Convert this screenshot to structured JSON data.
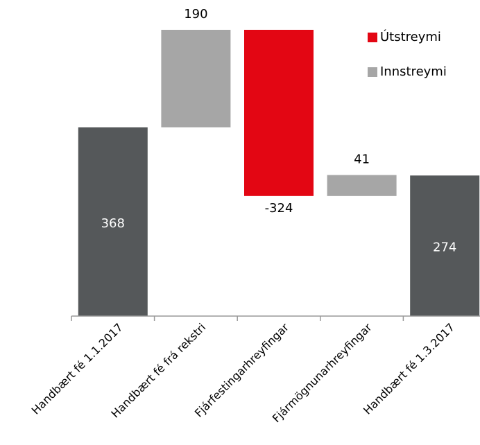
{
  "chart_data": {
    "type": "waterfall",
    "categories": [
      "Handbært fé 1.1.2017",
      "Handbært fé frá rekstri",
      "Fjárfestingarhreyfingar",
      "Fjármögnunarhreyfingar",
      "Handbært fé 1.3.2017"
    ],
    "values": [
      368,
      190,
      -324,
      41,
      274
    ],
    "totals": [
      true,
      false,
      false,
      false,
      true
    ],
    "total_color": "#55585a",
    "legend": [
      {
        "name": "Útstreymi",
        "color": "#e30613"
      },
      {
        "name": "Innstreymi",
        "color": "#a6a6a6"
      }
    ]
  }
}
